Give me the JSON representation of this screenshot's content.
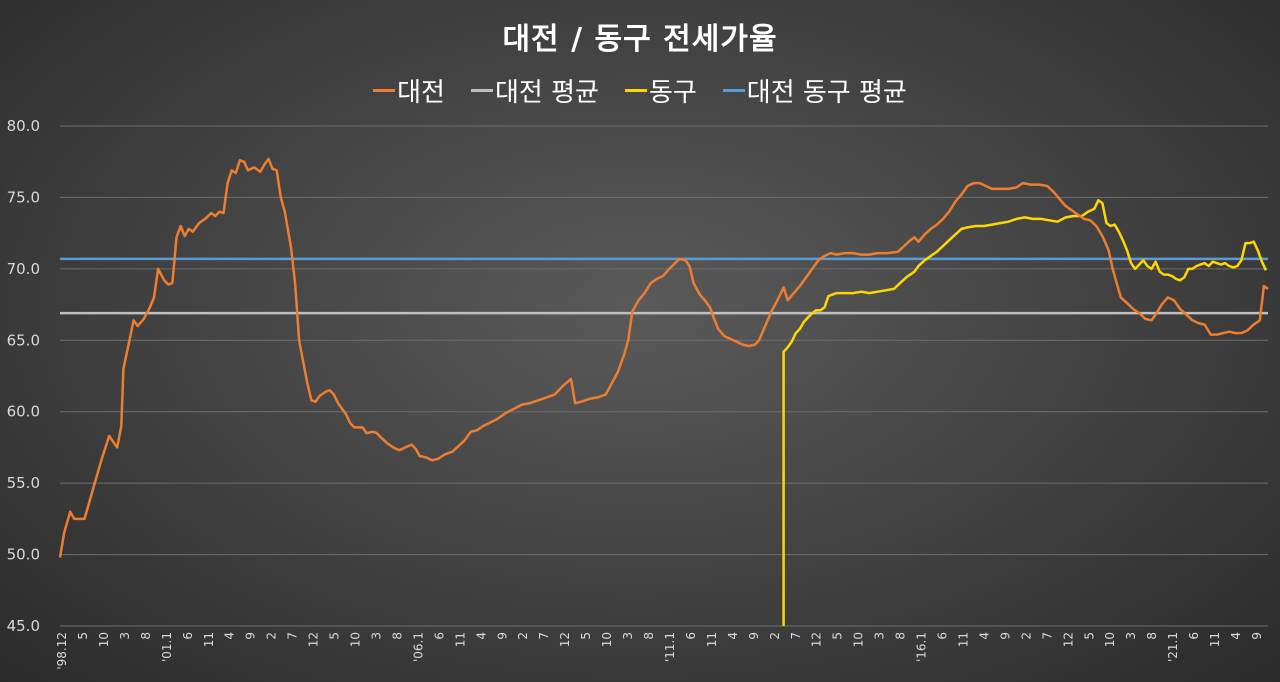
{
  "chart_data": {
    "type": "line",
    "title": "대전 / 동구 전세가율",
    "ylim": [
      45.0,
      80.0
    ],
    "yticks": [
      "80.0",
      "75.0",
      "70.0",
      "65.0",
      "60.0",
      "55.0",
      "50.0",
      "45.0"
    ],
    "x_tick_labels": [
      "'98.12",
      "5",
      "10",
      "3",
      "8",
      "'01.1",
      "6",
      "11",
      "4",
      "9",
      "2",
      "7",
      "12",
      "5",
      "10",
      "3",
      "8",
      "'06.1",
      "6",
      "11",
      "4",
      "9",
      "2",
      "7",
      "12",
      "5",
      "10",
      "3",
      "8",
      "'11.1",
      "6",
      "11",
      "4",
      "9",
      "2",
      "7",
      "12",
      "5",
      "10",
      "3",
      "8",
      "'16.1",
      "6",
      "11",
      "4",
      "9",
      "2",
      "7",
      "12",
      "5",
      "10",
      "3",
      "8",
      "'21.1",
      "6",
      "11",
      "4",
      "9"
    ],
    "grid": "horizontal",
    "legend_position": "top",
    "series": [
      {
        "name": "대전",
        "color": "#ed7d31",
        "points": [
          [
            0,
            49.8
          ],
          [
            2,
            51.5
          ],
          [
            5,
            53.0
          ],
          [
            7,
            52.5
          ],
          [
            12,
            52.5
          ],
          [
            16,
            54.5
          ],
          [
            20,
            56.5
          ],
          [
            24,
            58.3
          ],
          [
            28,
            57.5
          ],
          [
            30,
            59.0
          ],
          [
            31,
            63.0
          ],
          [
            34,
            65.0
          ],
          [
            36,
            66.4
          ],
          [
            38,
            66.0
          ],
          [
            41,
            66.5
          ],
          [
            44,
            67.3
          ],
          [
            46,
            68.0
          ],
          [
            48,
            70.0
          ],
          [
            51,
            69.2
          ],
          [
            53,
            68.9
          ],
          [
            55,
            69.0
          ],
          [
            57,
            72.2
          ],
          [
            59,
            73.0
          ],
          [
            61,
            72.3
          ],
          [
            63,
            72.8
          ],
          [
            65,
            72.6
          ],
          [
            68,
            73.2
          ],
          [
            71,
            73.5
          ],
          [
            74,
            73.9
          ],
          [
            76,
            73.7
          ],
          [
            78,
            74.0
          ],
          [
            80,
            73.9
          ],
          [
            82,
            76.0
          ],
          [
            84,
            76.9
          ],
          [
            86,
            76.7
          ],
          [
            88,
            77.6
          ],
          [
            90,
            77.5
          ],
          [
            92,
            76.9
          ],
          [
            95,
            77.1
          ],
          [
            98,
            76.8
          ],
          [
            100,
            77.3
          ],
          [
            102,
            77.7
          ],
          [
            104,
            77.0
          ],
          [
            106,
            76.9
          ],
          [
            108,
            75.0
          ],
          [
            110,
            74.0
          ],
          [
            113,
            71.5
          ],
          [
            115,
            69.0
          ],
          [
            117,
            65.0
          ],
          [
            119,
            63.5
          ],
          [
            121,
            62.0
          ],
          [
            123,
            60.8
          ],
          [
            125,
            60.7
          ],
          [
            127,
            61.1
          ],
          [
            130,
            61.4
          ],
          [
            132,
            61.5
          ],
          [
            134,
            61.2
          ],
          [
            136,
            60.6
          ],
          [
            140,
            59.8
          ],
          [
            142,
            59.2
          ],
          [
            144,
            58.9
          ],
          [
            148,
            58.9
          ],
          [
            150,
            58.5
          ],
          [
            153,
            58.6
          ],
          [
            155,
            58.5
          ],
          [
            157,
            58.2
          ],
          [
            160,
            57.8
          ],
          [
            163,
            57.5
          ],
          [
            166,
            57.3
          ],
          [
            169,
            57.5
          ],
          [
            172,
            57.7
          ],
          [
            174,
            57.4
          ],
          [
            176,
            56.9
          ],
          [
            179,
            56.8
          ],
          [
            182,
            56.6
          ],
          [
            185,
            56.7
          ],
          [
            188,
            57.0
          ],
          [
            192,
            57.2
          ],
          [
            195,
            57.6
          ],
          [
            198,
            58.0
          ],
          [
            201,
            58.6
          ],
          [
            204,
            58.7
          ],
          [
            207,
            59.0
          ],
          [
            210,
            59.2
          ],
          [
            214,
            59.5
          ],
          [
            218,
            59.9
          ],
          [
            222,
            60.2
          ],
          [
            226,
            60.5
          ],
          [
            230,
            60.6
          ],
          [
            234,
            60.8
          ],
          [
            238,
            61.0
          ],
          [
            242,
            61.2
          ],
          [
            246,
            61.8
          ],
          [
            250,
            62.3
          ],
          [
            252,
            60.6
          ],
          [
            255,
            60.7
          ],
          [
            259,
            60.9
          ],
          [
            263,
            61.0
          ],
          [
            267,
            61.2
          ],
          [
            270,
            62.0
          ],
          [
            273,
            62.8
          ],
          [
            276,
            64.0
          ],
          [
            278,
            65.0
          ],
          [
            280,
            67.0
          ],
          [
            283,
            67.8
          ],
          [
            286,
            68.3
          ],
          [
            289,
            69.0
          ],
          [
            292,
            69.3
          ],
          [
            295,
            69.5
          ],
          [
            298,
            70.0
          ],
          [
            301,
            70.4
          ],
          [
            303,
            70.7
          ],
          [
            306,
            70.6
          ],
          [
            308,
            70.2
          ],
          [
            310,
            69.0
          ],
          [
            313,
            68.2
          ],
          [
            316,
            67.7
          ],
          [
            318,
            67.3
          ],
          [
            320,
            66.5
          ],
          [
            322,
            65.8
          ],
          [
            325,
            65.3
          ],
          [
            328,
            65.1
          ],
          [
            331,
            64.9
          ],
          [
            334,
            64.7
          ],
          [
            337,
            64.6
          ],
          [
            340,
            64.7
          ],
          [
            342,
            65.0
          ],
          [
            345,
            66.0
          ],
          [
            348,
            67.0
          ],
          [
            351,
            67.8
          ],
          [
            354,
            68.7
          ],
          [
            356,
            67.8
          ],
          [
            359,
            68.3
          ],
          [
            362,
            68.8
          ],
          [
            365,
            69.4
          ],
          [
            368,
            70.0
          ],
          [
            371,
            70.6
          ],
          [
            374,
            70.9
          ],
          [
            377,
            71.1
          ],
          [
            380,
            71.0
          ],
          [
            384,
            71.1
          ],
          [
            388,
            71.1
          ],
          [
            392,
            71.0
          ],
          [
            396,
            71.0
          ],
          [
            400,
            71.1
          ],
          [
            405,
            71.1
          ],
          [
            410,
            71.2
          ],
          [
            413,
            71.6
          ],
          [
            416,
            72.0
          ],
          [
            418,
            72.2
          ],
          [
            420,
            71.9
          ],
          [
            423,
            72.4
          ],
          [
            426,
            72.8
          ],
          [
            429,
            73.1
          ],
          [
            432,
            73.5
          ],
          [
            435,
            74.0
          ],
          [
            438,
            74.7
          ],
          [
            441,
            75.2
          ],
          [
            444,
            75.8
          ],
          [
            447,
            76.0
          ],
          [
            450,
            76.0
          ],
          [
            453,
            75.8
          ],
          [
            456,
            75.6
          ],
          [
            460,
            75.6
          ],
          [
            464,
            75.6
          ],
          [
            468,
            75.7
          ],
          [
            471,
            76.0
          ],
          [
            475,
            75.9
          ],
          [
            479,
            75.9
          ],
          [
            483,
            75.8
          ],
          [
            486,
            75.4
          ],
          [
            489,
            74.9
          ],
          [
            492,
            74.4
          ],
          [
            495,
            74.1
          ],
          [
            498,
            73.8
          ],
          [
            501,
            73.5
          ],
          [
            504,
            73.4
          ],
          [
            507,
            73.0
          ],
          [
            510,
            72.3
          ],
          [
            513,
            71.3
          ],
          [
            515,
            70.0
          ],
          [
            517,
            69.0
          ],
          [
            519,
            68.0
          ],
          [
            522,
            67.6
          ],
          [
            525,
            67.2
          ],
          [
            528,
            66.9
          ],
          [
            531,
            66.5
          ],
          [
            534,
            66.4
          ],
          [
            536,
            66.8
          ],
          [
            539,
            67.5
          ],
          [
            542,
            68.0
          ],
          [
            545,
            67.8
          ],
          [
            548,
            67.2
          ],
          [
            551,
            66.8
          ],
          [
            554,
            66.4
          ],
          [
            557,
            66.2
          ],
          [
            560,
            66.1
          ],
          [
            563,
            65.4
          ],
          [
            566,
            65.4
          ],
          [
            569,
            65.5
          ],
          [
            572,
            65.6
          ],
          [
            575,
            65.5
          ],
          [
            578,
            65.5
          ],
          [
            581,
            65.7
          ],
          [
            584,
            66.1
          ],
          [
            587,
            66.4
          ],
          [
            589,
            68.8
          ],
          [
            591,
            68.6
          ]
        ]
      },
      {
        "name": "대전 평균",
        "color": "#bfbfbf",
        "y": 66.9
      },
      {
        "name": "동구",
        "color": "#ffd700",
        "points": [
          [
            354,
            45.0
          ],
          [
            354,
            64.2
          ],
          [
            356,
            64.5
          ],
          [
            358,
            64.9
          ],
          [
            360,
            65.5
          ],
          [
            362,
            65.8
          ],
          [
            364,
            66.3
          ],
          [
            366,
            66.6
          ],
          [
            368,
            66.9
          ],
          [
            370,
            67.1
          ],
          [
            372,
            67.1
          ],
          [
            374,
            67.3
          ],
          [
            376,
            68.1
          ],
          [
            378,
            68.2
          ],
          [
            380,
            68.3
          ],
          [
            384,
            68.3
          ],
          [
            388,
            68.3
          ],
          [
            392,
            68.4
          ],
          [
            396,
            68.3
          ],
          [
            400,
            68.4
          ],
          [
            404,
            68.5
          ],
          [
            408,
            68.6
          ],
          [
            411,
            69.0
          ],
          [
            414,
            69.4
          ],
          [
            418,
            69.8
          ],
          [
            420,
            70.2
          ],
          [
            423,
            70.6
          ],
          [
            426,
            70.9
          ],
          [
            429,
            71.2
          ],
          [
            432,
            71.6
          ],
          [
            435,
            72.0
          ],
          [
            438,
            72.4
          ],
          [
            441,
            72.8
          ],
          [
            444,
            72.9
          ],
          [
            448,
            73.0
          ],
          [
            452,
            73.0
          ],
          [
            456,
            73.1
          ],
          [
            460,
            73.2
          ],
          [
            464,
            73.3
          ],
          [
            468,
            73.5
          ],
          [
            472,
            73.6
          ],
          [
            476,
            73.5
          ],
          [
            480,
            73.5
          ],
          [
            484,
            73.4
          ],
          [
            488,
            73.3
          ],
          [
            492,
            73.6
          ],
          [
            496,
            73.7
          ],
          [
            500,
            73.7
          ],
          [
            503,
            74.0
          ],
          [
            506,
            74.2
          ],
          [
            508,
            74.8
          ],
          [
            510,
            74.6
          ],
          [
            512,
            73.2
          ],
          [
            514,
            73.0
          ],
          [
            516,
            73.1
          ],
          [
            518,
            72.6
          ],
          [
            520,
            72.0
          ],
          [
            522,
            71.3
          ],
          [
            524,
            70.4
          ],
          [
            526,
            70.0
          ],
          [
            528,
            70.3
          ],
          [
            530,
            70.6
          ],
          [
            532,
            70.2
          ],
          [
            534,
            70.0
          ],
          [
            536,
            70.5
          ],
          [
            538,
            69.8
          ],
          [
            540,
            69.6
          ],
          [
            542,
            69.6
          ],
          [
            544,
            69.5
          ],
          [
            546,
            69.3
          ],
          [
            548,
            69.2
          ],
          [
            550,
            69.4
          ],
          [
            552,
            70.0
          ],
          [
            554,
            70.0
          ],
          [
            556,
            70.2
          ],
          [
            558,
            70.3
          ],
          [
            560,
            70.4
          ],
          [
            562,
            70.2
          ],
          [
            564,
            70.5
          ],
          [
            566,
            70.4
          ],
          [
            568,
            70.3
          ],
          [
            570,
            70.4
          ],
          [
            572,
            70.2
          ],
          [
            574,
            70.1
          ],
          [
            576,
            70.2
          ],
          [
            578,
            70.6
          ],
          [
            580,
            71.8
          ],
          [
            582,
            71.8
          ],
          [
            584,
            71.9
          ],
          [
            586,
            71.3
          ],
          [
            588,
            70.5
          ],
          [
            590,
            69.9
          ]
        ]
      },
      {
        "name": "대전 동구 평균",
        "color": "#5b9bd5",
        "y": 70.7
      }
    ]
  }
}
